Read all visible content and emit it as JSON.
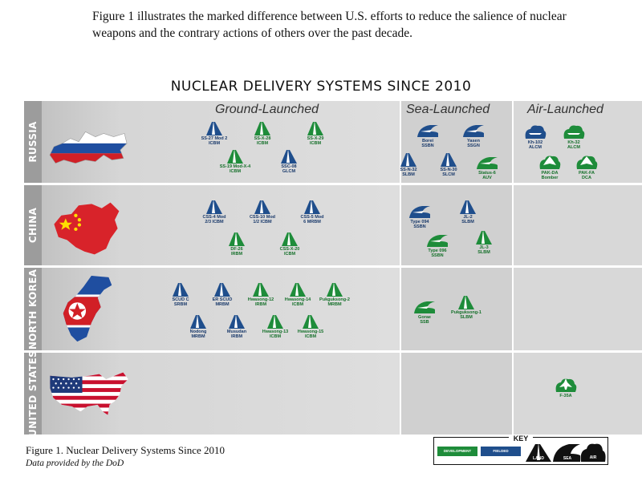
{
  "intro_text": "Figure 1 illustrates the marked difference between U.S. efforts to reduce the salience of nuclear weapons and the contrary actions of others over the past decade.",
  "main_title": "NUCLEAR DELIVERY SYSTEMS SINCE 2010",
  "categories": {
    "ground": "Ground-Launched",
    "sea": "Sea-Launched",
    "air": "Air-Launched"
  },
  "colors": {
    "fielded": "#1f4e8c",
    "development": "#1e8c3a",
    "row_label": "#9c9c9c"
  },
  "rows": [
    {
      "label": "RUSSIA",
      "ground": [
        {
          "name": "SS-27 Mod 2\nICBM",
          "status": "fielded",
          "icon": "land-icon"
        },
        {
          "name": "SS-X-28\nICBM",
          "status": "development",
          "icon": "land-icon"
        },
        {
          "name": "SS-X-29\nICBM",
          "status": "development",
          "icon": "land-icon"
        },
        {
          "name": "SS-19 Mod-X-4\nICBM",
          "status": "development",
          "icon": "land-icon"
        },
        {
          "name": "SSC-08\nGLCM",
          "status": "fielded",
          "icon": "land-icon"
        }
      ],
      "sea": [
        {
          "name": "Borei\nSSBN",
          "status": "fielded",
          "icon": "sea-icon"
        },
        {
          "name": "Yasen\nSSGN",
          "status": "fielded",
          "icon": "sea-icon"
        },
        {
          "name": "SS-N-32\nSLBM",
          "status": "fielded",
          "icon": "land-icon"
        },
        {
          "name": "SS-N-30\nSLCM",
          "status": "fielded",
          "icon": "land-icon"
        },
        {
          "name": "Status-6\nAUV",
          "status": "development",
          "icon": "sea-icon"
        }
      ],
      "air": [
        {
          "name": "Kh-102\nALCM",
          "status": "fielded",
          "icon": "air-icon"
        },
        {
          "name": "Kh-32\nALCM",
          "status": "development",
          "icon": "air-icon"
        },
        {
          "name": "PAK-DA\nBomber",
          "status": "development",
          "icon": "air-icon"
        },
        {
          "name": "PAK-FA\nDCA",
          "status": "development",
          "icon": "air-icon"
        }
      ]
    },
    {
      "label": "CHINA",
      "ground": [
        {
          "name": "CSS-4 Mod\n2/3 ICBM",
          "status": "fielded",
          "icon": "land-icon"
        },
        {
          "name": "CSS-10 Mod\n1/2 ICBM",
          "status": "fielded",
          "icon": "land-icon"
        },
        {
          "name": "CSS-5 Mod\n6 MRBM",
          "status": "fielded",
          "icon": "land-icon"
        },
        {
          "name": "DF-26\nIRBM",
          "status": "development",
          "icon": "land-icon"
        },
        {
          "name": "CSS-X-20\nICBM",
          "status": "development",
          "icon": "land-icon"
        }
      ],
      "sea": [
        {
          "name": "Type 094\nSSBN",
          "status": "fielded",
          "icon": "sea-icon"
        },
        {
          "name": "JL-2\nSLBM",
          "status": "fielded",
          "icon": "land-icon"
        },
        {
          "name": "Type 096\nSSBN",
          "status": "development",
          "icon": "sea-icon"
        },
        {
          "name": "JL-3\nSLBM",
          "status": "development",
          "icon": "land-icon"
        }
      ],
      "air": []
    },
    {
      "label": "NORTH KOREA",
      "ground": [
        {
          "name": "SCUD C\nSRBM",
          "status": "fielded",
          "icon": "land-icon"
        },
        {
          "name": "ER SCUD\nMRBM",
          "status": "fielded",
          "icon": "land-icon"
        },
        {
          "name": "Hwasong-12\nIRBM",
          "status": "development",
          "icon": "land-icon"
        },
        {
          "name": "Hwasong-14\nICBM",
          "status": "development",
          "icon": "land-icon"
        },
        {
          "name": "Pukguksong-2\nMRBM",
          "status": "development",
          "icon": "land-icon"
        },
        {
          "name": "Nodong\nMRBM",
          "status": "fielded",
          "icon": "land-icon"
        },
        {
          "name": "Musudan\nIRBM",
          "status": "fielded",
          "icon": "land-icon"
        },
        {
          "name": "Hwasong-13\nICBM",
          "status": "development",
          "icon": "land-icon"
        },
        {
          "name": "Hwasong-15\nICBM",
          "status": "development",
          "icon": "land-icon"
        }
      ],
      "sea": [
        {
          "name": "Gorae\nSSB",
          "status": "development",
          "icon": "sea-icon"
        },
        {
          "name": "Pukguksong-1\nSLBM",
          "status": "development",
          "icon": "land-icon"
        }
      ],
      "air": []
    },
    {
      "label": "UNITED STATES",
      "ground": [],
      "sea": [],
      "air": [
        {
          "name": "F-35A",
          "status": "development",
          "icon": "air-icon"
        }
      ]
    }
  ],
  "caption": "Figure 1. Nuclear Delivery Systems Since 2010",
  "source": "Data provided by the DoD",
  "key": {
    "title": "KEY",
    "development": "DEVELOPMENT",
    "fielded": "FIELDED",
    "land": "LAND",
    "sea": "SEA",
    "air": "AIR"
  }
}
